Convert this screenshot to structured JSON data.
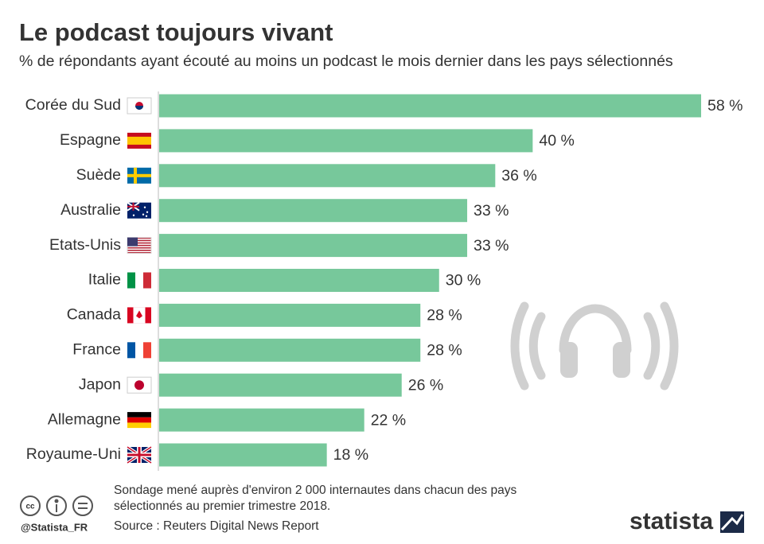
{
  "chart_data": {
    "type": "bar",
    "orientation": "horizontal",
    "title": "Le podcast toujours vivant",
    "subtitle": "% de répondants ayant écouté au moins un podcast le mois dernier dans les pays sélectionnés",
    "categories": [
      "Corée du Sud",
      "Espagne",
      "Suède",
      "Australie",
      "Etats-Unis",
      "Italie",
      "Canada",
      "France",
      "Japon",
      "Allemagne",
      "Royaume-Uni"
    ],
    "values": [
      58,
      40,
      36,
      33,
      33,
      30,
      28,
      28,
      26,
      22,
      18
    ],
    "value_labels": [
      "58 %",
      "40 %",
      "36 %",
      "33 %",
      "33 %",
      "30 %",
      "28 %",
      "28 %",
      "26 %",
      "22 %",
      "18 %"
    ],
    "color": "#77c89b",
    "note": [
      "Sondage mené auprès d'environ 2 000 internautes dans chacun des pays",
      "sélectionnés au premier trimestre 2018."
    ],
    "source": "Source : Reuters Digital News Report",
    "credit": "@Statista_FR",
    "brand": "statista"
  }
}
